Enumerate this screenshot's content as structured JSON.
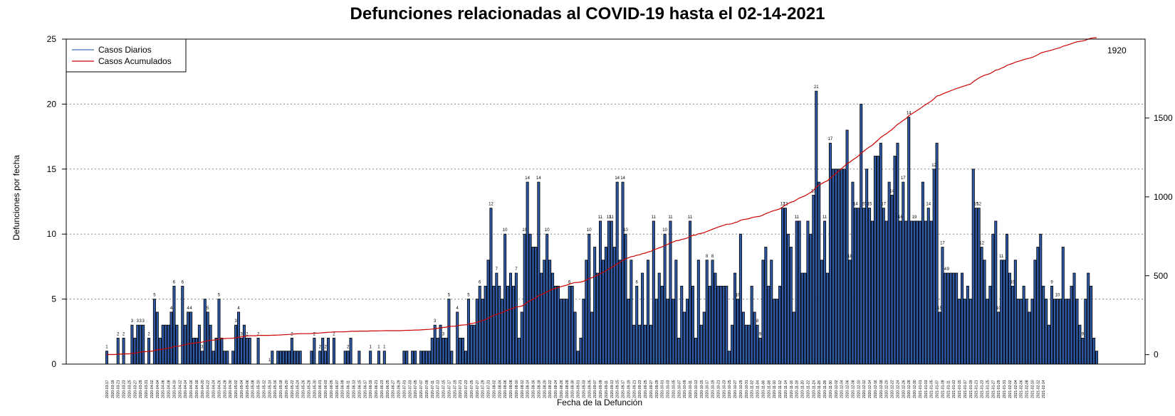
{
  "chart_data": {
    "type": "bar",
    "title": "Defunciones relacionadas al COVID-19 hasta el 02-14-2021",
    "xlabel": "Fecha de la Defunción",
    "ylabel": "Defunciones por fecha",
    "ylim": [
      0,
      25
    ],
    "y_ticks": [
      "0",
      "5",
      "10",
      "15",
      "20",
      "25"
    ],
    "y2lim": [
      -60,
      2000
    ],
    "y2_ticks": [
      "0",
      "500",
      "1000",
      "1500"
    ],
    "grid": "horizontal-dotted",
    "legend_position": "top-left",
    "cumulative_end_label": "1920",
    "colors": {
      "bars": "#2f5aa8",
      "bar_border": "#000000",
      "cumulative": "#cc0000",
      "legend_daily": "#4a6fb5"
    },
    "series": [
      {
        "name": "Casos Diarios",
        "type": "bar",
        "start_date": "2020-03-17",
        "end_date": "2021-02-14",
        "values": [
          1,
          0,
          0,
          0,
          2,
          0,
          2,
          0,
          0,
          3,
          2,
          3,
          3,
          3,
          0,
          2,
          0,
          5,
          4,
          2,
          3,
          3,
          3,
          4,
          6,
          3,
          0,
          6,
          3,
          4,
          4,
          2,
          2,
          3,
          1,
          5,
          4,
          3,
          1,
          2,
          5,
          2,
          1,
          1,
          0,
          1,
          3,
          4,
          2,
          3,
          2,
          2,
          0,
          0,
          2,
          0,
          0,
          0,
          0,
          1,
          0,
          1,
          1,
          1,
          1,
          1,
          2,
          1,
          1,
          1,
          0,
          0,
          0,
          1,
          2,
          0,
          1,
          2,
          1,
          2,
          0,
          2,
          0,
          0,
          0,
          1,
          1,
          2,
          0,
          0,
          1,
          0,
          0,
          0,
          1,
          0,
          0,
          1,
          0,
          1,
          0,
          0,
          0,
          0,
          0,
          0,
          1,
          1,
          0,
          1,
          1,
          0,
          1,
          1,
          1,
          1,
          2,
          3,
          2,
          3,
          2,
          2,
          5,
          1,
          0,
          4,
          2,
          2,
          1,
          5,
          3,
          3,
          5,
          6,
          5,
          6,
          8,
          12,
          6,
          7,
          6,
          5,
          10,
          6,
          7,
          6,
          7,
          2,
          4,
          10,
          14,
          10,
          9,
          9,
          14,
          7,
          8,
          10,
          8,
          7,
          6,
          6,
          5,
          5,
          5,
          6,
          6,
          4,
          1,
          2,
          5,
          8,
          10,
          4,
          9,
          7,
          11,
          8,
          9,
          11,
          11,
          9,
          14,
          8,
          14,
          10,
          5,
          8,
          3,
          6,
          3,
          7,
          3,
          8,
          3,
          11,
          5,
          7,
          6,
          10,
          5,
          11,
          5,
          8,
          2,
          6,
          4,
          5,
          11,
          6,
          2,
          8,
          3,
          4,
          8,
          6,
          8,
          7,
          6,
          6,
          6,
          6,
          1,
          3,
          7,
          5,
          10,
          4,
          3,
          3,
          6,
          4,
          3,
          2,
          8,
          9,
          6,
          8,
          5,
          5,
          6,
          12,
          12,
          10,
          9,
          4,
          11,
          11,
          7,
          7,
          11,
          10,
          13,
          21,
          14,
          8,
          11,
          7,
          17,
          15,
          15,
          15,
          15,
          15,
          18,
          8,
          14,
          12,
          12,
          20,
          12,
          15,
          12,
          11,
          16,
          16,
          17,
          12,
          11,
          14,
          13,
          16,
          17,
          11,
          14,
          11,
          19,
          11,
          11,
          11,
          11,
          14,
          11,
          12,
          11,
          15,
          17,
          4,
          9,
          7,
          7,
          7,
          7,
          7,
          5,
          7,
          5,
          6,
          5,
          15,
          12,
          12,
          9,
          8,
          5,
          6,
          10,
          11,
          4,
          8,
          8,
          10,
          7,
          6,
          8,
          5,
          5,
          6,
          5,
          4,
          5,
          8,
          9,
          10,
          6,
          5,
          3,
          6,
          5,
          5,
          5,
          9,
          5,
          5,
          6,
          7,
          5,
          3,
          2,
          5,
          7,
          6,
          2,
          1
        ]
      },
      {
        "name": "Casos Acumulados",
        "type": "line",
        "axis": "right",
        "cumulative_of": "Casos Diarios"
      }
    ],
    "bar_labels": [
      {
        "i": 0,
        "t": "1"
      },
      {
        "i": 4,
        "t": "2"
      },
      {
        "i": 6,
        "t": "2"
      },
      {
        "i": 9,
        "t": "3"
      },
      {
        "i": 11,
        "t": "3"
      },
      {
        "i": 12,
        "t": "3"
      },
      {
        "i": 13,
        "t": "3"
      },
      {
        "i": 15,
        "t": "2"
      },
      {
        "i": 17,
        "t": "5"
      },
      {
        "i": 23,
        "t": "4"
      },
      {
        "i": 24,
        "t": "6"
      },
      {
        "i": 27,
        "t": "6"
      },
      {
        "i": 29,
        "t": "4"
      },
      {
        "i": 30,
        "t": "4"
      },
      {
        "i": 34,
        "t": "3"
      },
      {
        "i": 36,
        "t": "5"
      },
      {
        "i": 40,
        "t": "5"
      },
      {
        "i": 46,
        "t": "3"
      },
      {
        "i": 47,
        "t": "4"
      },
      {
        "i": 48,
        "t": "3"
      },
      {
        "i": 50,
        "t": "2"
      },
      {
        "i": 54,
        "t": "2"
      },
      {
        "i": 58,
        "t": "1"
      },
      {
        "i": 66,
        "t": "2"
      },
      {
        "i": 74,
        "t": "2"
      },
      {
        "i": 76,
        "t": "2"
      },
      {
        "i": 78,
        "t": "2"
      },
      {
        "i": 81,
        "t": "2"
      },
      {
        "i": 86,
        "t": "2"
      },
      {
        "i": 94,
        "t": "1"
      },
      {
        "i": 97,
        "t": "1"
      },
      {
        "i": 99,
        "t": "1"
      },
      {
        "i": 117,
        "t": "3"
      },
      {
        "i": 120,
        "t": "3"
      },
      {
        "i": 122,
        "t": "5"
      },
      {
        "i": 125,
        "t": "4"
      },
      {
        "i": 129,
        "t": "5"
      },
      {
        "i": 133,
        "t": "6"
      },
      {
        "i": 137,
        "t": "12"
      },
      {
        "i": 139,
        "t": "7"
      },
      {
        "i": 142,
        "t": "10"
      },
      {
        "i": 146,
        "t": "7"
      },
      {
        "i": 149,
        "t": "10"
      },
      {
        "i": 150,
        "t": "14"
      },
      {
        "i": 154,
        "t": "14"
      },
      {
        "i": 157,
        "t": "10"
      },
      {
        "i": 165,
        "t": "6"
      },
      {
        "i": 172,
        "t": "10"
      },
      {
        "i": 176,
        "t": "11"
      },
      {
        "i": 179,
        "t": "11"
      },
      {
        "i": 180,
        "t": "11"
      },
      {
        "i": 182,
        "t": "14"
      },
      {
        "i": 184,
        "t": "14"
      },
      {
        "i": 185,
        "t": "10"
      },
      {
        "i": 189,
        "t": "6"
      },
      {
        "i": 195,
        "t": "11"
      },
      {
        "i": 199,
        "t": "10"
      },
      {
        "i": 201,
        "t": "11"
      },
      {
        "i": 208,
        "t": "11"
      },
      {
        "i": 214,
        "t": "8"
      },
      {
        "i": 216,
        "t": "8"
      },
      {
        "i": 225,
        "t": "10"
      },
      {
        "i": 232,
        "t": "8"
      },
      {
        "i": 233,
        "t": "9"
      },
      {
        "i": 241,
        "t": "12"
      },
      {
        "i": 242,
        "t": "12"
      },
      {
        "i": 246,
        "t": "11"
      },
      {
        "i": 252,
        "t": "13"
      },
      {
        "i": 253,
        "t": "21"
      },
      {
        "i": 256,
        "t": "11"
      },
      {
        "i": 258,
        "t": "17"
      },
      {
        "i": 265,
        "t": "18"
      },
      {
        "i": 267,
        "t": "14"
      },
      {
        "i": 270,
        "t": "20"
      },
      {
        "i": 272,
        "t": "15"
      },
      {
        "i": 277,
        "t": "17"
      },
      {
        "i": 280,
        "t": "14"
      },
      {
        "i": 283,
        "t": "16"
      },
      {
        "i": 284,
        "t": "17"
      },
      {
        "i": 286,
        "t": "14"
      },
      {
        "i": 288,
        "t": "19"
      },
      {
        "i": 293,
        "t": "14"
      },
      {
        "i": 295,
        "t": "12"
      },
      {
        "i": 297,
        "t": "15"
      },
      {
        "i": 298,
        "t": "17"
      },
      {
        "i": 299,
        "t": "4"
      },
      {
        "i": 300,
        "t": "9"
      },
      {
        "i": 310,
        "t": "15"
      },
      {
        "i": 311,
        "t": "12"
      },
      {
        "i": 312,
        "t": "12"
      },
      {
        "i": 318,
        "t": "10"
      },
      {
        "i": 319,
        "t": "11"
      },
      {
        "i": 323,
        "t": "10"
      },
      {
        "i": 337,
        "t": "9"
      },
      {
        "i": 339,
        "t": "10"
      },
      {
        "i": 348,
        "t": "9"
      },
      {
        "i": 355,
        "t": "7"
      },
      {
        "i": 356,
        "t": "6"
      },
      {
        "i": 359,
        "t": "1"
      }
    ],
    "x_tick_labels": [
      "2020-03-17",
      "2020-03-19",
      "2020-03-21",
      "2020-03-23",
      "2020-03-25",
      "2020-03-27",
      "2020-03-29",
      "2020-03-31",
      "2020-04-02",
      "2020-04-04",
      "2020-04-06",
      "2020-04-08",
      "2020-04-10",
      "2020-04-12",
      "2020-04-14",
      "2020-04-16",
      "2020-04-18",
      "2020-04-20",
      "2020-04-22",
      "2020-04-24",
      "2020-04-26",
      "2020-04-28",
      "2020-04-30",
      "2020-05-02",
      "2020-05-04",
      "2020-05-06",
      "2020-05-08",
      "2020-05-10",
      "2020-05-12",
      "2020-05-14",
      "2020-05-16",
      "2020-05-18",
      "2020-05-20",
      "2020-05-22",
      "2020-05-24",
      "2020-05-26",
      "2020-05-28",
      "2020-05-30",
      "2020-06-01",
      "2020-06-03",
      "2020-06-05",
      "2020-06-07",
      "2020-06-09",
      "2020-06-11",
      "2020-06-13",
      "2020-06-15",
      "2020-06-17",
      "2020-06-19",
      "2020-06-21",
      "2020-06-23",
      "2020-06-25",
      "2020-06-27",
      "2020-06-29",
      "2020-07-01",
      "2020-07-03",
      "2020-07-05",
      "2020-07-07",
      "2020-07-09",
      "2020-07-11",
      "2020-07-13",
      "2020-07-15",
      "2020-07-17",
      "2020-07-19",
      "2020-07-21",
      "2020-07-23",
      "2020-07-25",
      "2020-07-27",
      "2020-07-29",
      "2020-07-31",
      "2020-08-02",
      "2020-08-04",
      "2020-08-06",
      "2020-08-08",
      "2020-08-10",
      "2020-08-12",
      "2020-08-14",
      "2020-08-16",
      "2020-08-18",
      "2020-08-20",
      "2020-08-22",
      "2020-08-24",
      "2020-08-26",
      "2020-08-28",
      "2020-08-30",
      "2020-09-01",
      "2020-09-03",
      "2020-09-05",
      "2020-09-07",
      "2020-09-09",
      "2020-09-11",
      "2020-09-13",
      "2020-09-15",
      "2020-09-17",
      "2020-09-19",
      "2020-09-21",
      "2020-09-23",
      "2020-09-25",
      "2020-09-27",
      "2020-09-29",
      "2020-10-01",
      "2020-10-03",
      "2020-10-05",
      "2020-10-07",
      "2020-10-09",
      "2020-10-11",
      "2020-10-13",
      "2020-10-15",
      "2020-10-17",
      "2020-10-19",
      "2020-10-21",
      "2020-10-23",
      "2020-10-25",
      "2020-10-27",
      "2020-10-29",
      "2020-10-31",
      "2020-11-02",
      "2020-11-04",
      "2020-11-06",
      "2020-11-08",
      "2020-11-10",
      "2020-11-12",
      "2020-11-14",
      "2020-11-16",
      "2020-11-18",
      "2020-11-20",
      "2020-11-22",
      "2020-11-24",
      "2020-11-26",
      "2020-11-28",
      "2020-11-30",
      "2020-12-02",
      "2020-12-04",
      "2020-12-06",
      "2020-12-08",
      "2020-12-10",
      "2020-12-12",
      "2020-12-14",
      "2020-12-16",
      "2020-12-18",
      "2020-12-20",
      "2020-12-22",
      "2020-12-24",
      "2020-12-26",
      "2020-12-28",
      "2020-12-30",
      "2021-01-01",
      "2021-01-03",
      "2021-01-05",
      "2021-01-07",
      "2021-01-09",
      "2021-01-11",
      "2021-01-13",
      "2021-01-15",
      "2021-01-17",
      "2021-01-19",
      "2021-01-21",
      "2021-01-23",
      "2021-01-25",
      "2021-01-27",
      "2021-01-29",
      "2021-01-31",
      "2021-02-02",
      "2021-02-04",
      "2021-02-06",
      "2021-02-08",
      "2021-02-10",
      "2021-02-12",
      "2021-02-14"
    ]
  }
}
